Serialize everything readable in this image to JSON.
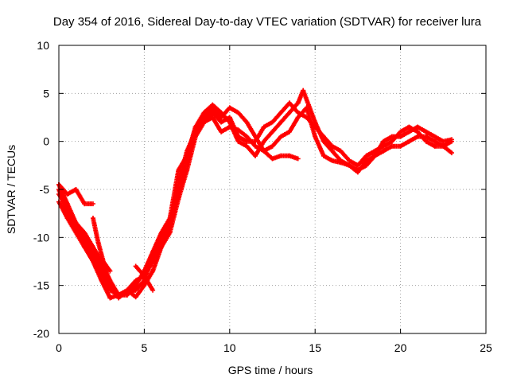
{
  "chart_data": {
    "type": "scatter",
    "title": "Day 354 of 2016, Sidereal Day-to-day VTEC variation (SDTVAR) for receiver lura",
    "xlabel": "GPS time / hours",
    "ylabel": "SDTVAR / TECUs",
    "xlim": [
      0,
      25
    ],
    "ylim": [
      -20,
      10
    ],
    "xticks": [
      0,
      5,
      10,
      15,
      20,
      25
    ],
    "yticks": [
      -20,
      -15,
      -10,
      -5,
      0,
      5,
      10
    ],
    "grid": true,
    "marker": "+",
    "color": "#ff0000",
    "series": [
      {
        "name": "track-1",
        "x": [
          0.0,
          0.5,
          1.0,
          1.5,
          2.0,
          2.5,
          3.0,
          3.5,
          4.0,
          4.5,
          5.0,
          5.5,
          6.0,
          6.5,
          7.0,
          7.5,
          8.0,
          8.5,
          9.0,
          9.5,
          10.0,
          10.5,
          11.0,
          11.5,
          12.0,
          12.5,
          13.0,
          13.5,
          14.0
        ],
        "y": [
          -6.3,
          -8.0,
          -9.5,
          -11.0,
          -12.5,
          -14.5,
          -16.3,
          -16.0,
          -15.5,
          -16.2,
          -15.0,
          -13.5,
          -11.0,
          -9.5,
          -6.0,
          -3.0,
          0.5,
          2.0,
          2.5,
          1.0,
          1.5,
          1.2,
          0.5,
          -0.5,
          -1.0,
          -1.8,
          -1.5,
          -1.5,
          -1.8
        ]
      },
      {
        "name": "track-2",
        "x": [
          0.0,
          0.5,
          1.0,
          1.5,
          2.0,
          2.5,
          3.0,
          3.5,
          4.0,
          4.5,
          5.0,
          5.5,
          6.0,
          6.5,
          7.0,
          7.5,
          8.0,
          8.5,
          9.0,
          9.5,
          10.0,
          10.5,
          11.0,
          11.5,
          12.0,
          12.5,
          13.0,
          13.5,
          14.0,
          14.3,
          15.0,
          15.5,
          16.0,
          16.5,
          17.0,
          17.5,
          18.0,
          18.5,
          19.0,
          19.5,
          20.0,
          20.5,
          21.0,
          21.5,
          22.0,
          22.5,
          23.0
        ],
        "y": [
          -4.5,
          -6.5,
          -8.5,
          -10.0,
          -11.5,
          -13.0,
          -15.0,
          -16.3,
          -15.5,
          -14.5,
          -14.0,
          -12.5,
          -10.5,
          -9.0,
          -5.5,
          -2.0,
          1.5,
          3.0,
          3.8,
          3.0,
          2.0,
          0.0,
          -0.5,
          -1.5,
          0.0,
          1.0,
          2.0,
          3.0,
          4.0,
          5.3,
          2.0,
          0.0,
          -1.0,
          -2.0,
          -2.5,
          -3.0,
          -2.5,
          -1.5,
          -1.0,
          -0.5,
          -0.5,
          0.0,
          0.5,
          0.5,
          0.0,
          -0.5,
          -1.2
        ]
      },
      {
        "name": "track-3",
        "x": [
          0.0,
          0.5,
          1.0,
          1.5,
          2.0,
          2.5,
          3.0,
          3.5,
          4.0,
          4.5,
          5.0,
          5.5,
          6.0,
          6.5,
          7.0,
          7.5,
          8.0,
          8.5,
          9.0,
          9.5,
          10.0,
          10.5,
          11.0,
          11.5,
          12.0,
          12.5,
          13.0,
          13.5,
          14.0,
          14.5,
          15.0,
          15.5,
          16.0,
          16.5,
          17.0,
          17.5,
          18.0,
          18.5,
          19.0,
          19.5,
          20.0,
          20.5,
          21.0,
          21.5,
          22.0,
          22.5,
          23.0
        ],
        "y": [
          -5.0,
          -7.5,
          -9.0,
          -10.5,
          -12.0,
          -13.8,
          -15.5,
          -16.0,
          -15.8,
          -15.5,
          -14.5,
          -12.0,
          -10.0,
          -8.5,
          -4.5,
          -1.0,
          1.0,
          2.5,
          3.5,
          2.5,
          3.5,
          3.0,
          2.0,
          0.5,
          -1.0,
          -0.5,
          0.5,
          1.0,
          2.5,
          3.5,
          0.5,
          -1.5,
          -2.0,
          -2.2,
          -2.5,
          -3.2,
          -2.0,
          -1.5,
          0.0,
          0.5,
          0.5,
          1.0,
          1.5,
          1.0,
          0.5,
          0.0,
          0.2
        ]
      },
      {
        "name": "track-4",
        "x": [
          0.0,
          0.5,
          1.0,
          1.5,
          2.0,
          2.5,
          3.0,
          3.5,
          4.0,
          4.5,
          5.0,
          5.5,
          6.0,
          6.5,
          7.0,
          7.5,
          8.0,
          8.5,
          9.0,
          9.5,
          10.0,
          10.5,
          11.0,
          11.5,
          12.0,
          12.5,
          13.0,
          13.5,
          14.0,
          14.5,
          15.0,
          15.5,
          16.0,
          16.5,
          17.0,
          17.5,
          18.0,
          18.5,
          19.0,
          19.5,
          20.0,
          20.5,
          21.0,
          21.5,
          22.0,
          22.5,
          23.0
        ],
        "y": [
          -5.5,
          -7.0,
          -8.5,
          -9.5,
          -11.0,
          -12.5,
          -14.5,
          -16.0,
          -16.0,
          -15.0,
          -13.5,
          -11.5,
          -9.5,
          -8.0,
          -3.0,
          -1.5,
          1.5,
          2.0,
          3.0,
          2.0,
          2.5,
          0.5,
          0.0,
          0.0,
          1.5,
          2.0,
          3.0,
          4.0,
          3.0,
          2.5,
          1.5,
          0.5,
          -0.5,
          -1.0,
          -2.0,
          -2.5,
          -1.5,
          -1.0,
          -0.5,
          0.0,
          1.0,
          1.5,
          1.0,
          0.0,
          -0.5,
          -0.5,
          0.0
        ]
      },
      {
        "name": "track-5",
        "x": [
          0.0,
          0.5,
          1.0,
          1.5,
          2.0
        ],
        "y": [
          -4.5,
          -5.5,
          -5.0,
          -6.5,
          -6.5
        ]
      },
      {
        "name": "track-6",
        "x": [
          2.0,
          2.3,
          2.6,
          3.0
        ],
        "y": [
          -8.0,
          -10.5,
          -12.5,
          -13.5
        ]
      },
      {
        "name": "track-7",
        "x": [
          4.5,
          5.0,
          5.5
        ],
        "y": [
          -13.0,
          -14.0,
          -15.5
        ]
      }
    ]
  }
}
